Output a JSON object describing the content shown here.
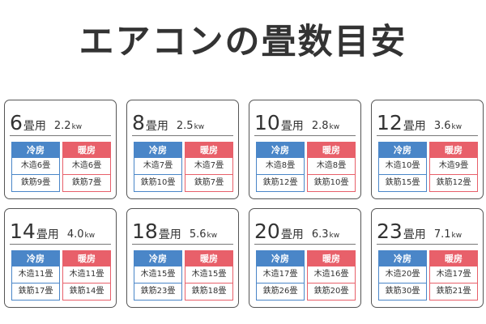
{
  "title": "エアコンの畳数目安",
  "labels": {
    "jo_unit": "畳用",
    "kw_unit": "kw",
    "cooling": "冷房",
    "heating": "暖房"
  },
  "colors": {
    "cooling": "#4a86c8",
    "heating": "#e8606a"
  },
  "cards": [
    {
      "jo": "6",
      "kw": "2.2",
      "cool_wood": "木造6畳",
      "cool_rc": "鉄筋9畳",
      "heat_wood": "木造6畳",
      "heat_rc": "鉄筋7畳"
    },
    {
      "jo": "8",
      "kw": "2.5",
      "cool_wood": "木造7畳",
      "cool_rc": "鉄筋10畳",
      "heat_wood": "木造7畳",
      "heat_rc": "鉄筋7畳"
    },
    {
      "jo": "10",
      "kw": "2.8",
      "cool_wood": "木造8畳",
      "cool_rc": "鉄筋12畳",
      "heat_wood": "木造8畳",
      "heat_rc": "鉄筋10畳"
    },
    {
      "jo": "12",
      "kw": "3.6",
      "cool_wood": "木造10畳",
      "cool_rc": "鉄筋15畳",
      "heat_wood": "木造9畳",
      "heat_rc": "鉄筋12畳"
    },
    {
      "jo": "14",
      "kw": "4.0",
      "cool_wood": "木造11畳",
      "cool_rc": "鉄筋17畳",
      "heat_wood": "木造11畳",
      "heat_rc": "鉄筋14畳"
    },
    {
      "jo": "18",
      "kw": "5.6",
      "cool_wood": "木造15畳",
      "cool_rc": "鉄筋23畳",
      "heat_wood": "木造15畳",
      "heat_rc": "鉄筋18畳"
    },
    {
      "jo": "20",
      "kw": "6.3",
      "cool_wood": "木造17畳",
      "cool_rc": "鉄筋26畳",
      "heat_wood": "木造16畳",
      "heat_rc": "鉄筋20畳"
    },
    {
      "jo": "23",
      "kw": "7.1",
      "cool_wood": "木造20畳",
      "cool_rc": "鉄筋30畳",
      "heat_wood": "木造17畳",
      "heat_rc": "鉄筋21畳"
    }
  ]
}
